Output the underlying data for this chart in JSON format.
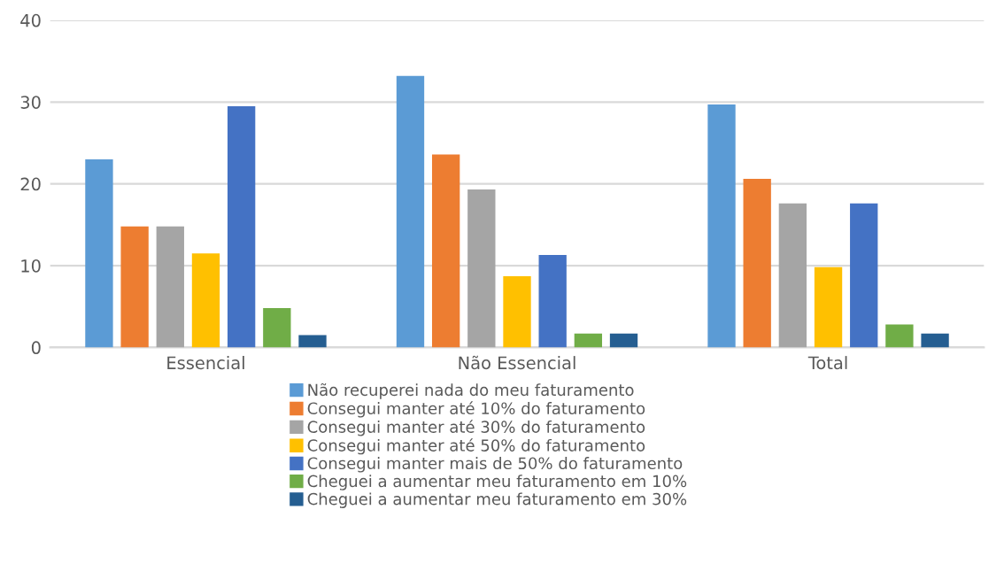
{
  "chart_data": {
    "type": "bar",
    "categories": [
      "Essencial",
      "Não Essencial",
      "Total"
    ],
    "series": [
      {
        "name": "Não recuperei nada do meu faturamento",
        "color": "#5b9bd5",
        "values": [
          23,
          33.2,
          29.7
        ]
      },
      {
        "name": "Consegui manter até 10% do faturamento",
        "color": "#ed7d31",
        "values": [
          14.8,
          23.6,
          20.6
        ]
      },
      {
        "name": "Consegui manter até 30% do faturamento",
        "color": "#a5a5a5",
        "values": [
          14.8,
          19.3,
          17.6
        ]
      },
      {
        "name": "Consegui manter até 50% do faturamento",
        "color": "#ffc000",
        "values": [
          11.5,
          8.7,
          9.8
        ]
      },
      {
        "name": "Consegui manter mais de 50% do faturamento",
        "color": "#4472c4",
        "values": [
          29.5,
          11.3,
          17.6
        ]
      },
      {
        "name": "Cheguei a aumentar meu faturamento em 10%",
        "color": "#70ad47",
        "values": [
          4.8,
          1.7,
          2.8
        ]
      },
      {
        "name": "Cheguei a aumentar meu faturamento em 30%",
        "color": "#255e91",
        "values": [
          1.5,
          1.7,
          1.7
        ]
      }
    ],
    "ylim": [
      0,
      40
    ],
    "yticks": [
      0,
      10,
      20,
      30,
      40
    ],
    "grid": "y",
    "legend": "bottom"
  }
}
